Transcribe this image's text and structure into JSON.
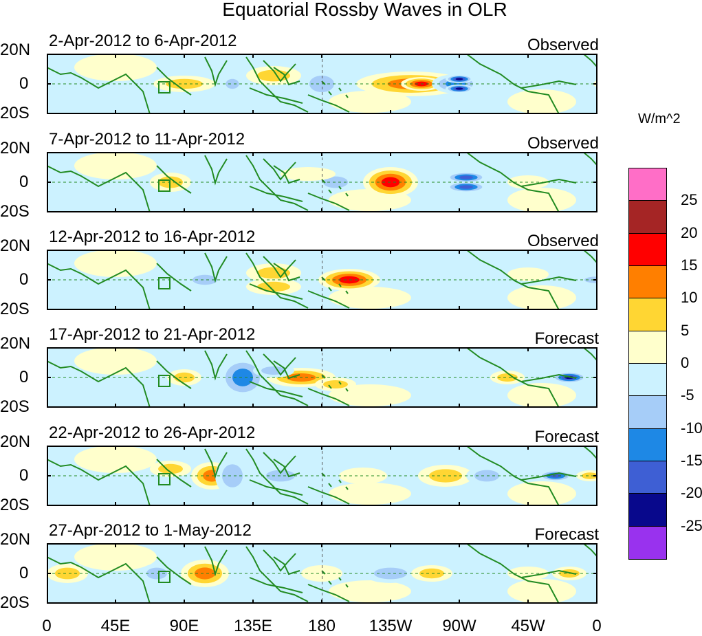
{
  "chart_data": {
    "type": "heatmap",
    "title": "Equatorial Rossby Waves in OLR",
    "units_label": "W/m^2",
    "x_ticks": [
      "0",
      "45E",
      "90E",
      "135E",
      "180",
      "135W",
      "90W",
      "45W",
      "0"
    ],
    "y_ticks": [
      "20N",
      "0",
      "20S"
    ],
    "colorbar": {
      "colors": [
        "#ff6ec7",
        "#a52525",
        "#ff0000",
        "#ff7f00",
        "#ffd633",
        "#ffffcc",
        "#ccf2ff",
        "#a6cdf8",
        "#1e88e5",
        "#3e5fd4",
        "#08088c",
        "#9932ee"
      ],
      "labels": [
        "25",
        "20",
        "15",
        "10",
        "5",
        "0",
        "-5",
        "-10",
        "-15",
        "-20",
        "-25"
      ]
    },
    "panels": [
      {
        "date_range": "2-Apr-2012 to 6-Apr-2012",
        "kind": "Observed",
        "blobs": [
          [
            200,
            0,
            45,
            12,
            10
          ],
          [
            270,
            0,
            16,
            12,
            -10
          ],
          [
            530,
            0,
            80,
            18,
            15
          ],
          [
            545,
            0,
            30,
            10,
            20
          ],
          [
            595,
            0,
            35,
            14,
            -15
          ],
          [
            600,
            -7,
            20,
            6,
            -25
          ],
          [
            600,
            7,
            20,
            6,
            -25
          ],
          [
            820,
            0,
            25,
            8,
            10
          ],
          [
            400,
            0,
            30,
            20,
            -10
          ],
          [
            330,
            -12,
            40,
            14,
            10
          ]
        ]
      },
      {
        "date_range": "7-Apr-2012 to 11-Apr-2012",
        "kind": "Observed",
        "blobs": [
          [
            500,
            0,
            40,
            22,
            20
          ],
          [
            610,
            -7,
            30,
            8,
            -20
          ],
          [
            610,
            7,
            30,
            8,
            -20
          ],
          [
            180,
            0,
            30,
            14,
            10
          ],
          [
            420,
            0,
            30,
            14,
            -10
          ],
          [
            700,
            0,
            30,
            10,
            5
          ],
          [
            380,
            -12,
            40,
            10,
            5
          ]
        ]
      },
      {
        "date_range": "12-Apr-2012 to 16-Apr-2012",
        "kind": "Observed",
        "blobs": [
          [
            440,
            0,
            45,
            16,
            20
          ],
          [
            330,
            -10,
            40,
            14,
            10
          ],
          [
            330,
            10,
            40,
            12,
            10
          ],
          [
            580,
            0,
            50,
            18,
            -5
          ],
          [
            230,
            0,
            30,
            12,
            -10
          ],
          [
            800,
            0,
            30,
            8,
            -10
          ],
          [
            700,
            -8,
            30,
            10,
            5
          ]
        ]
      },
      {
        "date_range": "17-Apr-2012 to 21-Apr-2012",
        "kind": "Forecast",
        "blobs": [
          [
            370,
            0,
            50,
            14,
            15
          ],
          [
            285,
            0,
            35,
            30,
            -15
          ],
          [
            420,
            10,
            30,
            10,
            10
          ],
          [
            760,
            0,
            25,
            8,
            -25
          ],
          [
            670,
            0,
            25,
            10,
            10
          ],
          [
            200,
            0,
            25,
            12,
            10
          ],
          [
            570,
            0,
            35,
            12,
            -5
          ],
          [
            330,
            -10,
            30,
            10,
            -10
          ]
        ]
      },
      {
        "date_range": "22-Apr-2012 to 26-Apr-2012",
        "kind": "Forecast",
        "blobs": [
          [
            240,
            0,
            30,
            20,
            15
          ],
          [
            270,
            0,
            25,
            28,
            -10
          ],
          [
            340,
            0,
            35,
            14,
            -10
          ],
          [
            580,
            0,
            40,
            16,
            10
          ],
          [
            460,
            0,
            35,
            12,
            5
          ],
          [
            740,
            0,
            25,
            8,
            -20
          ],
          [
            790,
            0,
            20,
            8,
            10
          ],
          [
            640,
            0,
            30,
            14,
            -10
          ],
          [
            180,
            -10,
            30,
            12,
            10
          ]
        ]
      },
      {
        "date_range": "27-Apr-2012 to 1-May-2012",
        "kind": "Forecast",
        "blobs": [
          [
            230,
            0,
            35,
            20,
            15
          ],
          [
            160,
            0,
            25,
            14,
            -10
          ],
          [
            30,
            0,
            30,
            14,
            10
          ],
          [
            500,
            0,
            40,
            14,
            -10
          ],
          [
            560,
            0,
            30,
            12,
            10
          ],
          [
            620,
            0,
            30,
            14,
            -5
          ],
          [
            700,
            0,
            30,
            10,
            5
          ],
          [
            760,
            0,
            25,
            10,
            10
          ],
          [
            400,
            0,
            30,
            12,
            5
          ]
        ]
      }
    ]
  }
}
